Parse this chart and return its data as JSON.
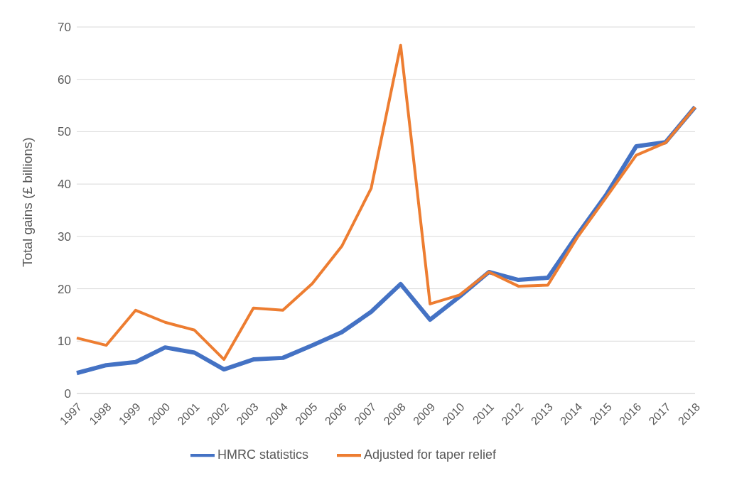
{
  "chart_data": {
    "type": "line",
    "ylabel": "Total gains (£ billions)",
    "categories": [
      "1997",
      "1998",
      "1999",
      "2000",
      "2001",
      "2002",
      "2003",
      "2004",
      "2005",
      "2006",
      "2007",
      "2008",
      "2009",
      "2010",
      "2011",
      "2012",
      "2013",
      "2014",
      "2015",
      "2016",
      "2017",
      "2018"
    ],
    "series": [
      {
        "name": "HMRC statistics",
        "color": "#4472c4",
        "values": [
          3.9,
          5.4,
          6.0,
          8.8,
          7.8,
          4.6,
          6.5,
          6.8,
          9.2,
          11.7,
          15.6,
          20.9,
          14.1,
          18.5,
          23.2,
          21.7,
          22.1,
          30.3,
          38.1,
          47.2,
          48.0,
          54.7
        ]
      },
      {
        "name": "Adjusted for taper relief",
        "color": "#ed7d31",
        "values": [
          10.6,
          9.2,
          15.9,
          13.6,
          12.1,
          6.5,
          16.3,
          15.9,
          21.0,
          28.1,
          39.2,
          66.5,
          17.1,
          18.8,
          23.2,
          20.5,
          20.7,
          29.8,
          37.6,
          45.5,
          47.9,
          54.7
        ]
      }
    ],
    "ylim": [
      0,
      70
    ],
    "yticks": [
      0,
      10,
      20,
      30,
      40,
      50,
      60,
      70
    ],
    "grid": "y",
    "legend": "bottom",
    "marker": "none",
    "line_style": "solid"
  }
}
